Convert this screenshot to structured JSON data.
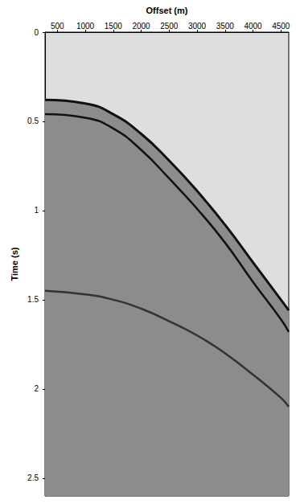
{
  "chart_data": {
    "type": "line",
    "x_label": "Offset (m)",
    "y_label": "Time (s)",
    "x": [
      280,
      1000,
      1500,
      2000,
      2500,
      3000,
      3500,
      4000,
      4500,
      4640
    ],
    "series": [
      {
        "type": "area",
        "color": "#111111",
        "values": [
          0.38,
          0.4,
          0.46,
          0.57,
          0.72,
          0.89,
          1.08,
          1.29,
          1.5,
          1.56
        ]
      },
      {
        "type": "line",
        "color": "#111111",
        "values": [
          0.46,
          0.48,
          0.54,
          0.66,
          0.82,
          0.99,
          1.18,
          1.4,
          1.61,
          1.68
        ]
      },
      {
        "type": "line",
        "color": "#333333",
        "values": [
          1.45,
          1.47,
          1.5,
          1.55,
          1.62,
          1.7,
          1.8,
          1.92,
          2.05,
          2.1
        ]
      }
    ],
    "xlim": [
      280,
      4640
    ],
    "xticks": [
      500,
      1000,
      1500,
      2000,
      2500,
      3000,
      3500,
      4000,
      4500
    ],
    "ylim": [
      0,
      2.6
    ],
    "yticks": [
      0,
      0.5,
      1,
      1.5,
      2,
      2.5
    ],
    "grid": false
  }
}
